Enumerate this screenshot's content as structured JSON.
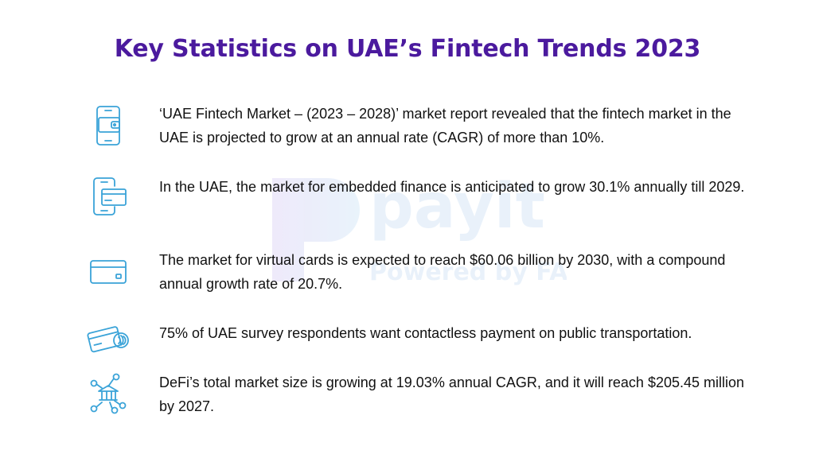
{
  "title": "Key Statistics on UAE’s Fintech Trends 2023",
  "watermark": {
    "brand": "payit",
    "tagline": "Powered by FAB"
  },
  "accent_color": "#4b1a9e",
  "icon_color": "#3aa3d8",
  "items": [
    {
      "icon": "mobile-wallet-icon",
      "text": "‘UAE Fintech Market – (2023 – 2028)’ market report revealed that the fintech market in the UAE is projected to grow at an annual rate (CAGR) of more than 10%."
    },
    {
      "icon": "phone-card-icon",
      "text": "In the UAE, the market for embedded finance is anticipated to grow 30.1% annually till 2029."
    },
    {
      "icon": "credit-card-icon",
      "text": "The market for virtual cards is expected to reach $60.06 billion by 2030, with a compound annual growth rate of 20.7%."
    },
    {
      "icon": "contactless-card-icon",
      "text": "75% of UAE survey respondents want contactless payment on public transportation."
    },
    {
      "icon": "defi-network-bank-icon",
      "text": "DeFi’s total market size is growing at 19.03% annual CAGR, and it will reach $205.45 million by 2027."
    }
  ]
}
